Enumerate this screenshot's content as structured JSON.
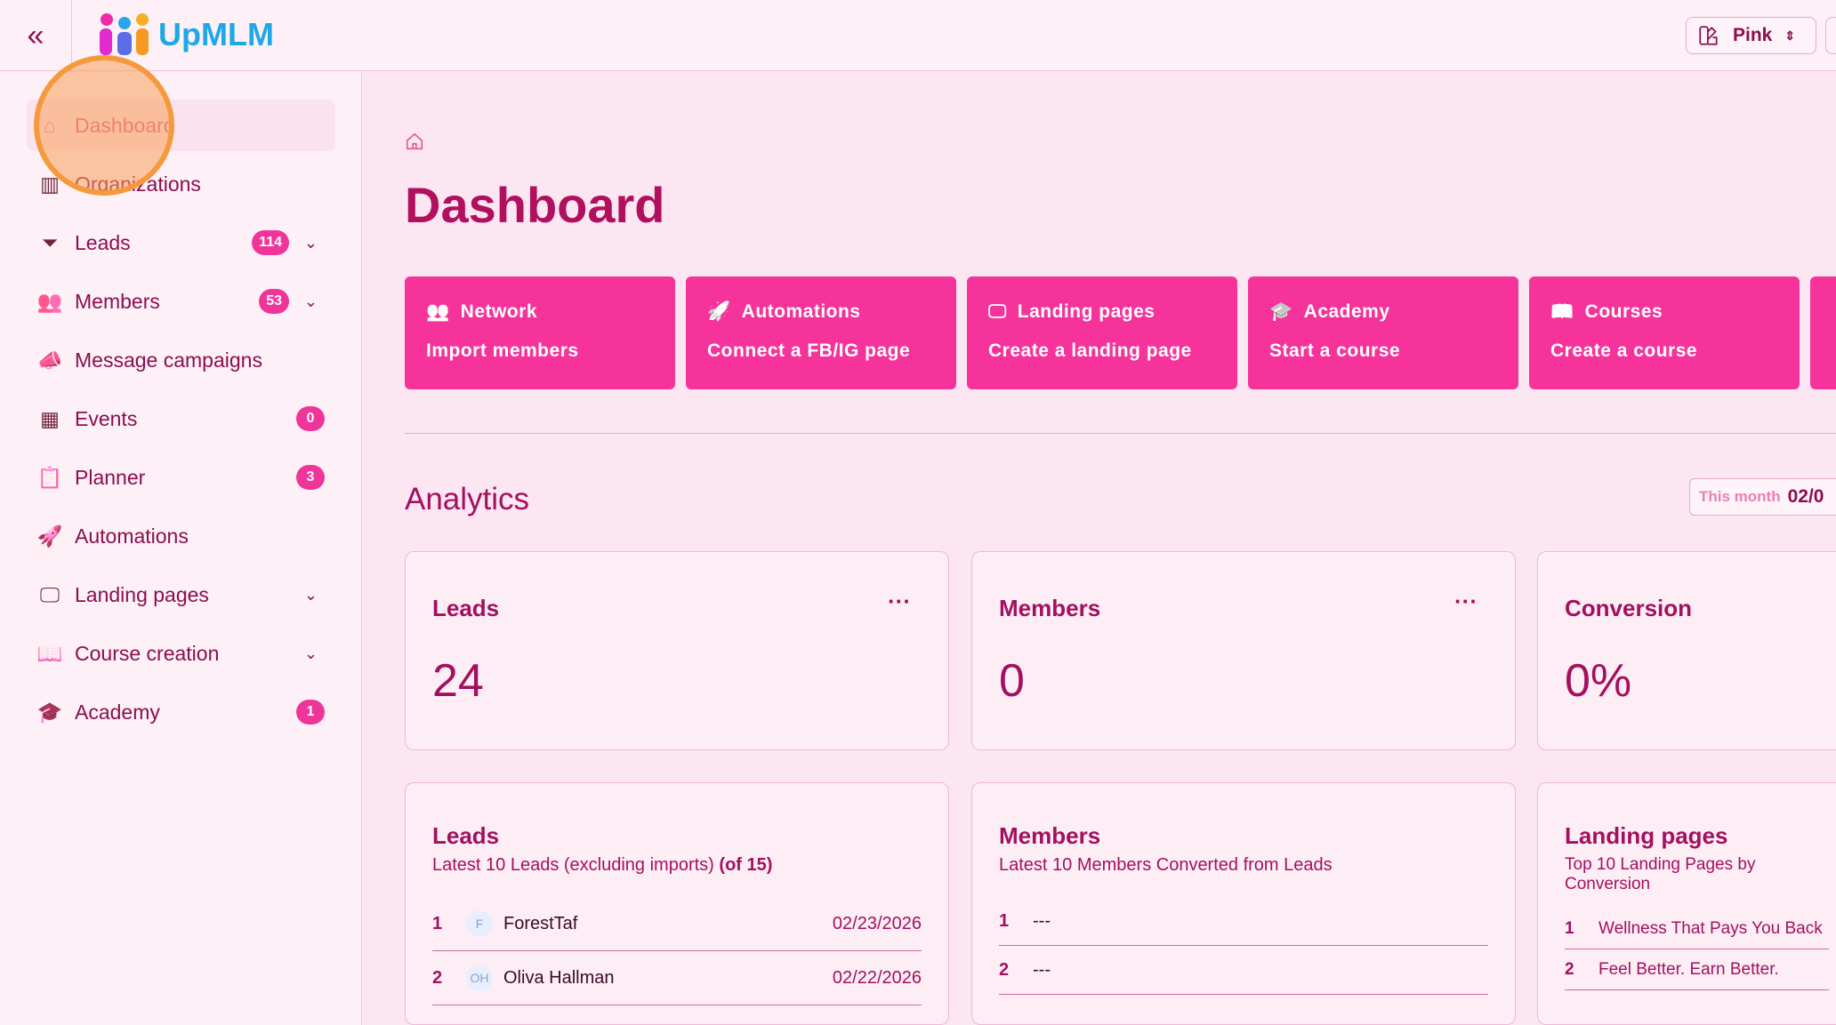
{
  "header": {
    "brand": "UpMLM",
    "theme": "Pink"
  },
  "sidebar": {
    "items": [
      {
        "label": "Dashboard",
        "icon": "home-icon",
        "active": true
      },
      {
        "label": "Organizations",
        "icon": "building-icon"
      },
      {
        "label": "Leads",
        "icon": "funnel-icon",
        "badge": "114",
        "expandable": true
      },
      {
        "label": "Members",
        "icon": "users-icon",
        "badge": "53",
        "expandable": true
      },
      {
        "label": "Message campaigns",
        "icon": "megaphone-icon"
      },
      {
        "label": "Events",
        "icon": "calendar-icon",
        "badge": "0"
      },
      {
        "label": "Planner",
        "icon": "clipboard-icon",
        "badge": "3"
      },
      {
        "label": "Automations",
        "icon": "rocket-icon"
      },
      {
        "label": "Landing pages",
        "icon": "monitor-icon",
        "expandable": true
      },
      {
        "label": "Course creation",
        "icon": "book-icon",
        "expandable": true
      },
      {
        "label": "Academy",
        "icon": "graduation-cap-icon",
        "badge": "1"
      }
    ]
  },
  "page": {
    "title": "Dashboard"
  },
  "quick_actions": [
    {
      "title": "Network",
      "action": "Import members",
      "icon": "users-icon"
    },
    {
      "title": "Automations",
      "action": "Connect a FB/IG page",
      "icon": "rocket-icon"
    },
    {
      "title": "Landing pages",
      "action": "Create a landing page",
      "icon": "monitor-icon"
    },
    {
      "title": "Academy",
      "action": "Start a course",
      "icon": "graduation-cap-icon"
    },
    {
      "title": "Courses",
      "action": "Create a course",
      "icon": "book-icon"
    }
  ],
  "analytics": {
    "title": "Analytics",
    "range_label": "This month",
    "range_value": "02/0",
    "stats": [
      {
        "label": "Leads",
        "value": "24"
      },
      {
        "label": "Members",
        "value": "0"
      },
      {
        "label": "Conversion",
        "value": "0%"
      }
    ],
    "leads": {
      "title": "Leads",
      "subtitle": "Latest 10 Leads (excluding imports)",
      "count": "(of 15)",
      "rows": [
        {
          "n": "1",
          "initials": "F",
          "name": "ForestTaf",
          "date": "02/23/2026"
        },
        {
          "n": "2",
          "initials": "OH",
          "name": "Oliva Hallman",
          "date": "02/22/2026"
        }
      ]
    },
    "members": {
      "title": "Members",
      "subtitle": "Latest 10 Members Converted from Leads",
      "rows": [
        {
          "n": "1",
          "name": "---"
        },
        {
          "n": "2",
          "name": "---"
        }
      ]
    },
    "landing": {
      "title": "Landing pages",
      "subtitle": "Top 10 Landing Pages by Conversion",
      "rows": [
        {
          "n": "1",
          "name": "Wellness That Pays You Back"
        },
        {
          "n": "2",
          "name": "Feel Better. Earn Better."
        }
      ]
    }
  },
  "colors": {
    "accent": "#f5339a",
    "text": "#a3105f",
    "background": "#fce6f2"
  }
}
